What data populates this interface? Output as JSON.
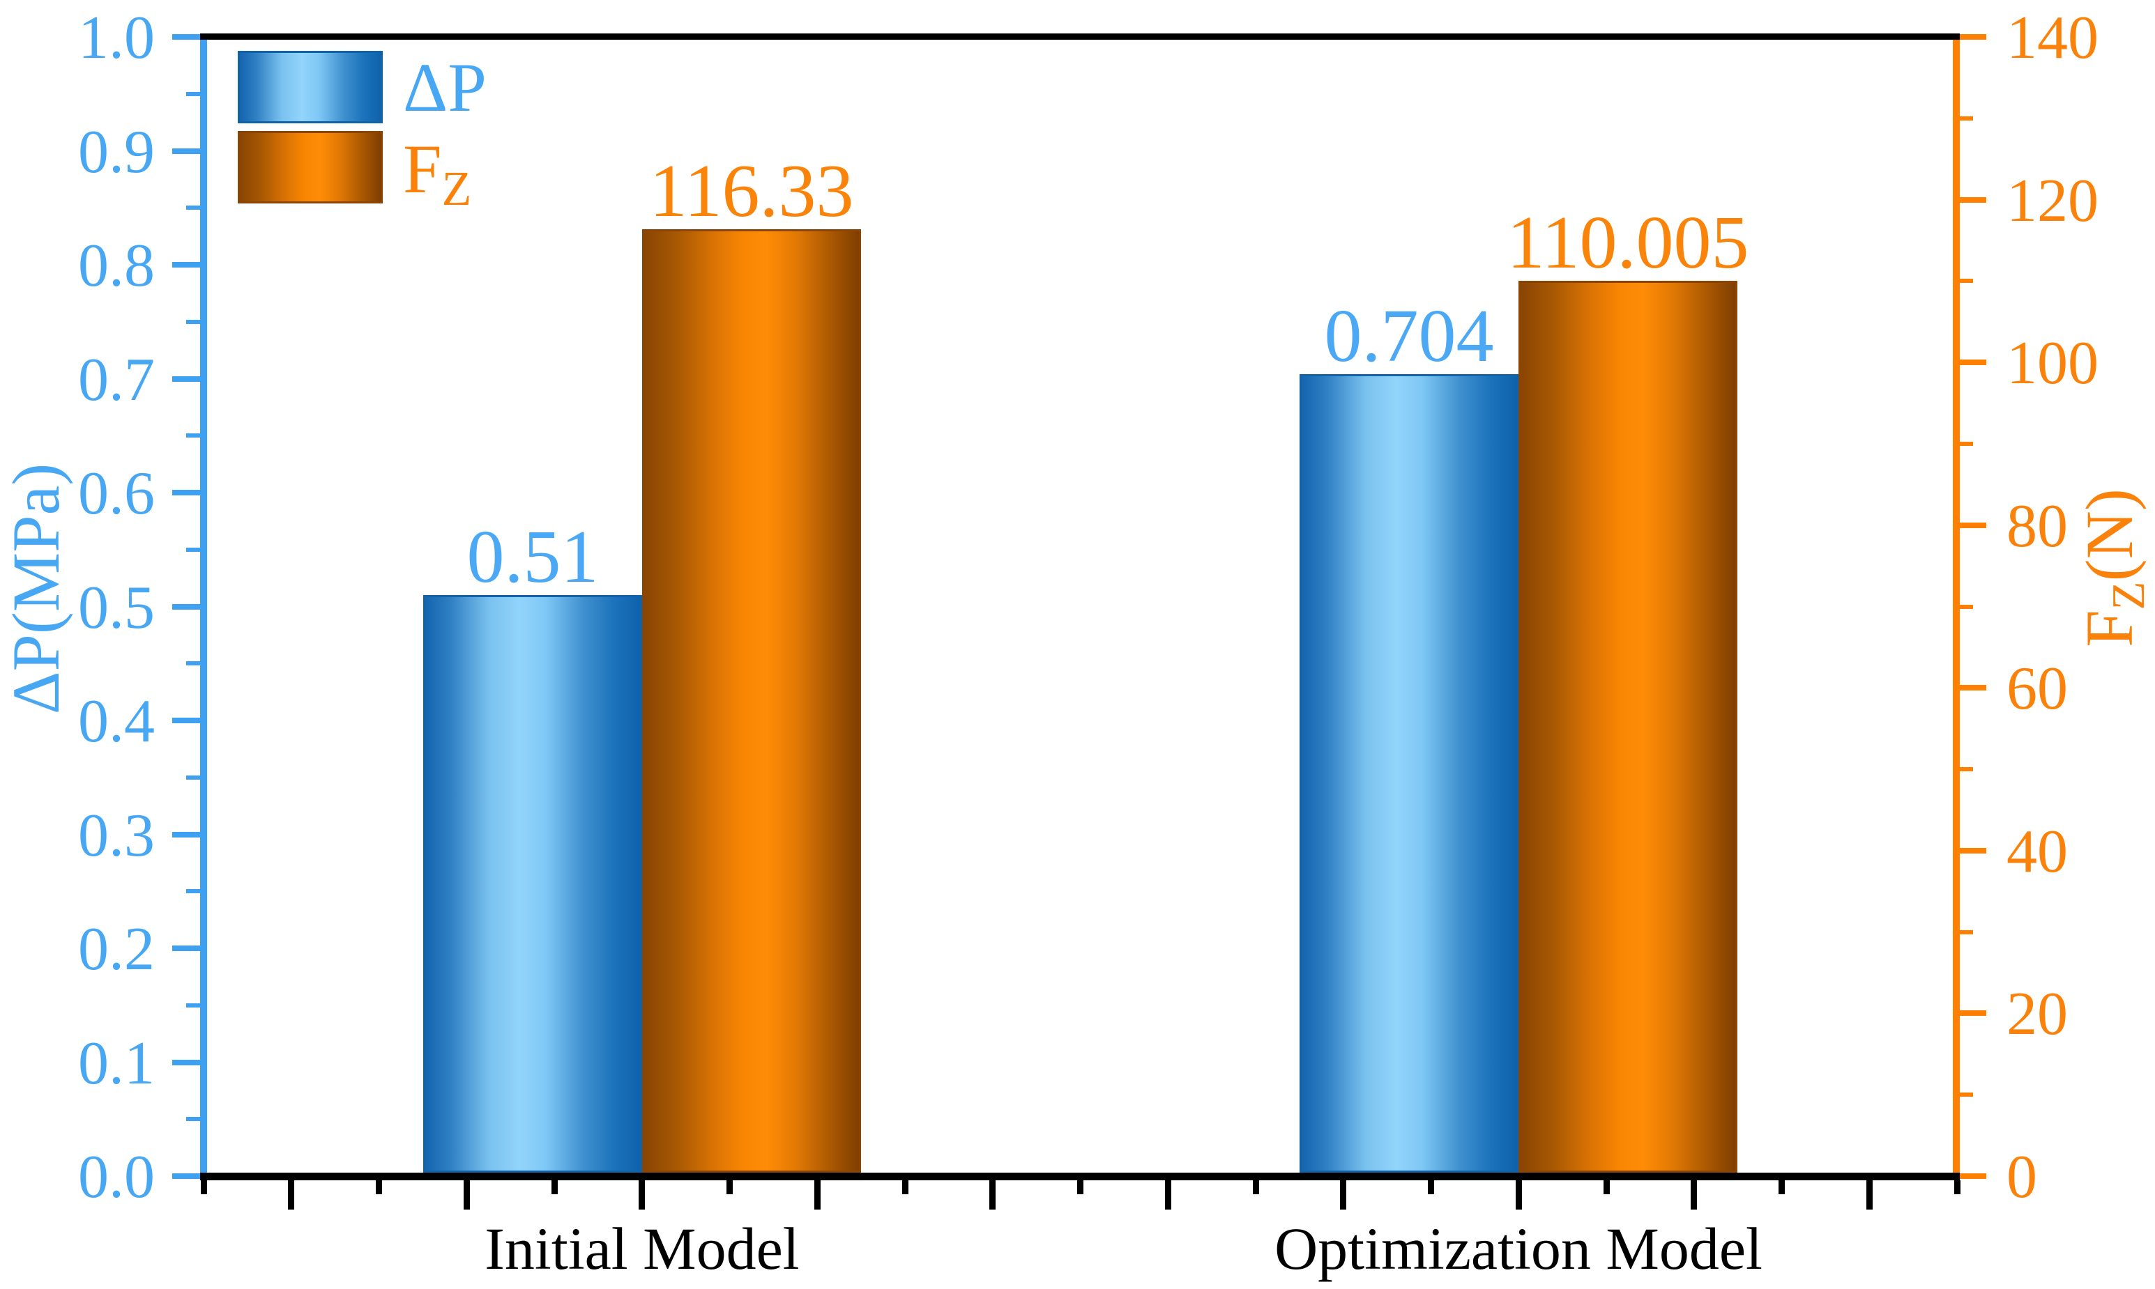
{
  "chart_data": {
    "type": "bar",
    "categories": [
      "Initial Model",
      "Optimization Model"
    ],
    "series": [
      {
        "name": "ΔP",
        "unit": "MPa",
        "axis": "left",
        "values": [
          0.51,
          0.704
        ],
        "value_labels": [
          "0.51",
          "0.704"
        ],
        "color_center": "#92D4FB",
        "color_edge": "#1565AF",
        "label_color": "#4BA8F5"
      },
      {
        "name": "FZ",
        "unit": "N",
        "axis": "right",
        "values": [
          116.33,
          110.005
        ],
        "value_labels": [
          "116.33",
          "110.005"
        ],
        "color_center": "#FF8C07",
        "color_edge": "#8A4503",
        "label_color": "#FA830A"
      }
    ],
    "left_axis": {
      "title": "ΔP(MPa)",
      "min": 0.0,
      "max": 1.0,
      "major_step": 0.1,
      "minor_step": 0.05,
      "tick_labels": [
        "0.0",
        "0.1",
        "0.2",
        "0.3",
        "0.4",
        "0.5",
        "0.6",
        "0.7",
        "0.8",
        "0.9",
        "1.0"
      ],
      "line_color": "#3EA0F0",
      "text_color": "#47A7F3"
    },
    "right_axis": {
      "title_base": "F",
      "title_sub": "Z",
      "title_rest": "(N)",
      "min": 0,
      "max": 140,
      "major_step": 20,
      "minor_step": 10,
      "tick_labels": [
        "0",
        "20",
        "40",
        "60",
        "80",
        "100",
        "120",
        "140"
      ],
      "line_color": "#FF7F00",
      "text_color": "#FA820A"
    },
    "x_axis": {
      "line_color": "#000000",
      "category_labels": [
        "Initial Model",
        "Optimization Model"
      ]
    },
    "legend": {
      "entries": [
        {
          "label": "ΔP"
        },
        {
          "label_base": "F",
          "label_sub": "Z"
        }
      ]
    },
    "layout_hints": {
      "legend_position": "top-left",
      "grid": false,
      "bar_value_labels": true
    }
  }
}
